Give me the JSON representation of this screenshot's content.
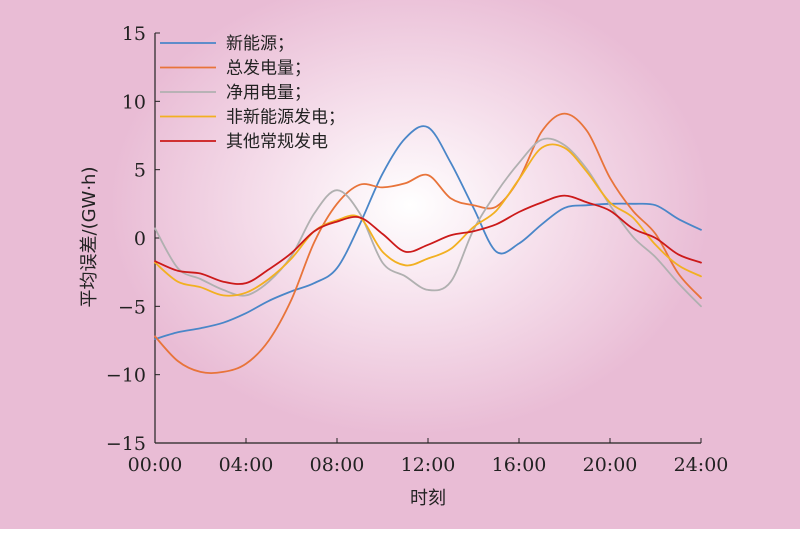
{
  "chart_data": {
    "type": "line",
    "title": "",
    "xlabel": "时刻",
    "ylabel": "平均误差/(GW·h)",
    "x_ticks": [
      "00:00",
      "04:00",
      "08:00",
      "12:00",
      "16:00",
      "20:00",
      "24:00"
    ],
    "x_range_hours": [
      0,
      24
    ],
    "y_ticks": [
      15,
      10,
      5,
      0,
      -5,
      -10,
      -15
    ],
    "ylim": [
      -15,
      15
    ],
    "grid": false,
    "legend_position": "top-left",
    "x_hours": [
      0,
      1,
      2,
      3,
      4,
      5,
      6,
      7,
      8,
      9,
      10,
      11,
      12,
      13,
      14,
      15,
      16,
      17,
      18,
      19,
      20,
      21,
      22,
      23,
      24
    ],
    "series": [
      {
        "name": "新能源；",
        "color": "#4a86c8",
        "values": [
          -7.4,
          -6.9,
          -6.6,
          -6.2,
          -5.5,
          -4.6,
          -3.9,
          -3.3,
          -2.2,
          1.0,
          4.7,
          7.3,
          8.1,
          5.5,
          2.2,
          -1.0,
          -0.4,
          1.0,
          2.2,
          2.4,
          2.5,
          2.5,
          2.4,
          1.4,
          0.6
        ]
      },
      {
        "name": "总发电量；",
        "color": "#e8743a",
        "values": [
          -7.2,
          -9.0,
          -9.8,
          -9.8,
          -9.2,
          -7.5,
          -4.5,
          -0.3,
          2.5,
          3.9,
          3.7,
          4.0,
          4.6,
          2.9,
          2.4,
          2.3,
          4.3,
          7.8,
          9.1,
          7.8,
          4.4,
          2.0,
          0.3,
          -2.6,
          -4.4
        ]
      },
      {
        "name": "净用电量；",
        "color": "#b0b0b0",
        "values": [
          0.7,
          -2.2,
          -3.0,
          -3.8,
          -4.2,
          -3.2,
          -1.3,
          1.8,
          3.5,
          1.8,
          -1.8,
          -2.8,
          -3.8,
          -3.2,
          0.6,
          3.3,
          5.5,
          7.2,
          6.8,
          5.0,
          2.4,
          0.1,
          -1.4,
          -3.3,
          -5.0
        ]
      },
      {
        "name": "非新能源发电；",
        "color": "#f2b021",
        "values": [
          -1.8,
          -3.2,
          -3.6,
          -4.2,
          -4.0,
          -3.0,
          -1.5,
          0.5,
          1.3,
          1.5,
          -1.0,
          -2.0,
          -1.5,
          -0.8,
          0.8,
          2.0,
          4.3,
          6.6,
          6.6,
          4.8,
          2.6,
          1.5,
          -0.5,
          -2.0,
          -2.8
        ]
      },
      {
        "name": "其他常规发电",
        "color": "#cc1a1a",
        "values": [
          -1.7,
          -2.4,
          -2.6,
          -3.2,
          -3.3,
          -2.3,
          -1.1,
          0.5,
          1.2,
          1.5,
          0.3,
          -1.0,
          -0.5,
          0.2,
          0.5,
          1.0,
          1.9,
          2.6,
          3.1,
          2.6,
          2.0,
          0.7,
          0.0,
          -1.2,
          -1.8
        ]
      }
    ]
  }
}
